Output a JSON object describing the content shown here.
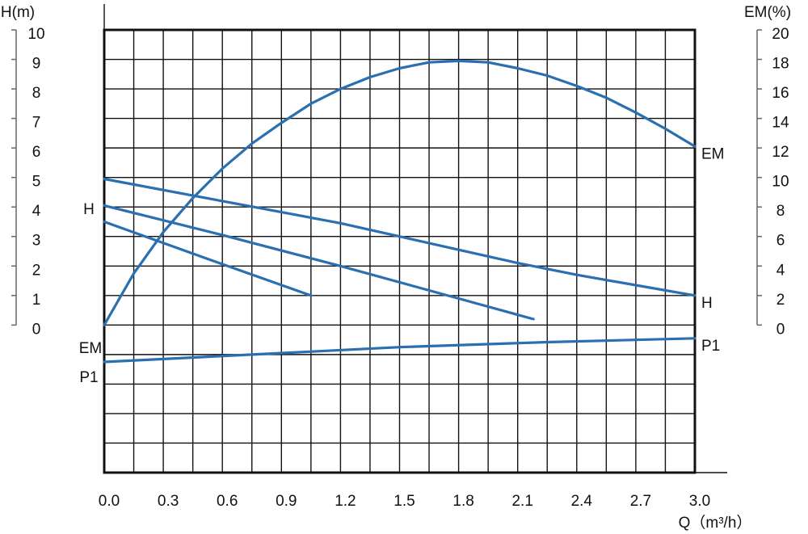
{
  "chart_data": {
    "type": "line",
    "y_label": "H(m)",
    "y2_label": "EM(%)",
    "x_label": "Q（m³/h）",
    "xlim": [
      0,
      3
    ],
    "xticks": [
      {
        "value": 0,
        "label": "0.0"
      },
      0.3,
      0.6,
      0.9,
      1.2,
      1.5,
      1.8,
      2.1,
      2.4,
      2.7,
      {
        "value": 3,
        "label": "3.0"
      }
    ],
    "ylim": [
      -5,
      10
    ],
    "yticks": [
      0,
      1,
      2,
      3,
      4,
      5,
      6,
      7,
      8,
      9,
      10
    ],
    "y2lim": [
      -10,
      20
    ],
    "y2ticks": [
      0,
      2,
      4,
      6,
      8,
      10,
      12,
      14,
      16,
      18,
      20
    ],
    "grid": true,
    "annotations": [
      "H",
      "EM",
      "P1"
    ],
    "series": [
      {
        "name": "EM",
        "color": "#2a6fb0",
        "axis": "y2",
        "x": [
          0,
          0.15,
          0.3,
          0.45,
          0.6,
          0.75,
          0.9,
          1.05,
          1.2,
          1.35,
          1.5,
          1.65,
          1.8,
          1.95,
          2.1,
          2.25,
          2.4,
          2.55,
          2.7,
          2.85,
          3.0
        ],
        "values": [
          0,
          3.5,
          6.3,
          8.6,
          10.6,
          12.3,
          13.7,
          15.0,
          16.0,
          16.8,
          17.4,
          17.8,
          17.9,
          17.8,
          17.4,
          16.9,
          16.2,
          15.4,
          14.4,
          13.3,
          12.1
        ]
      },
      {
        "name": "H",
        "color": "#2a6fb0",
        "x": [
          0,
          0.6,
          1.2,
          1.5,
          1.8,
          2.1,
          2.4,
          2.7,
          3.0
        ],
        "values": [
          4.95,
          4.2,
          3.45,
          3.0,
          2.55,
          2.1,
          1.7,
          1.35,
          1.0
        ]
      },
      {
        "color": "#2a6fb0",
        "x": [
          0,
          0.6,
          1.2,
          1.8,
          2.18
        ],
        "values": [
          4.05,
          3.05,
          2.0,
          0.9,
          0.2
        ]
      },
      {
        "color": "#2a6fb0",
        "x": [
          0,
          0.5,
          1.05
        ],
        "values": [
          3.5,
          2.3,
          1.0
        ]
      },
      {
        "name": "P1",
        "color": "#2a6fb0",
        "x": [
          0,
          0.75,
          1.5,
          2.25,
          3.0
        ],
        "values": [
          -1.25,
          -1.0,
          -0.75,
          -0.58,
          -0.45
        ]
      }
    ]
  }
}
